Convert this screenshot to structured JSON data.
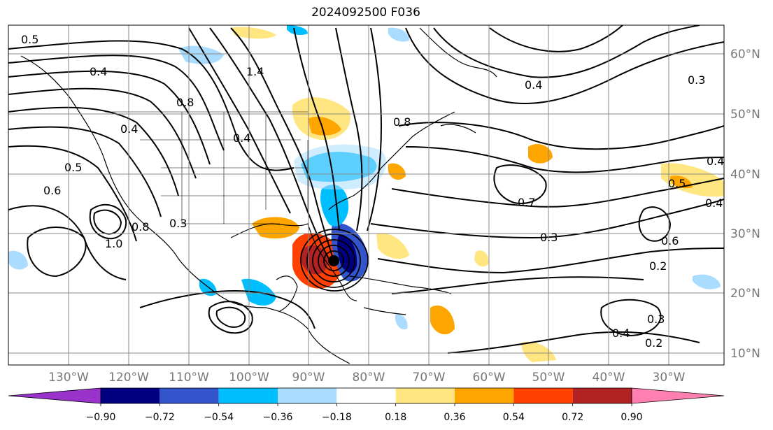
{
  "title": "2024092500 F036",
  "map": {
    "lon_labels": [
      "130°W",
      "120°W",
      "110°W",
      "100°W",
      "90°W",
      "80°W",
      "70°W",
      "60°W",
      "50°W",
      "40°W",
      "30°W"
    ],
    "lat_labels": [
      "60°N",
      "50°N",
      "40°N",
      "30°N",
      "20°N",
      "10°N"
    ],
    "contour_labels": [
      "0.5",
      "0.4",
      "0.6",
      "0.5",
      "0.4",
      "0.8",
      "1.0",
      "0.8",
      "0.3",
      "0.4",
      "1.4",
      "0.8",
      "0.4",
      "0.7",
      "0.3",
      "0.2",
      "0.5",
      "0.4",
      "0.6",
      "0.3",
      "0.4",
      "0.2",
      "0.3",
      "0.4"
    ],
    "colors": {
      "contour": "#000000",
      "grid": "#888888"
    }
  },
  "colorbar": {
    "ticks": [
      "−0.90",
      "−0.72",
      "−0.54",
      "−0.36",
      "−0.18",
      "0.18",
      "0.36",
      "0.54",
      "0.72",
      "0.90"
    ],
    "colors": [
      "#9933cc",
      "#000080",
      "#3355cc",
      "#00bfff",
      "#aadcff",
      "#ffffff",
      "#ffe680",
      "#ffa500",
      "#ff4000",
      "#b22222",
      "#ff80b0"
    ]
  }
}
